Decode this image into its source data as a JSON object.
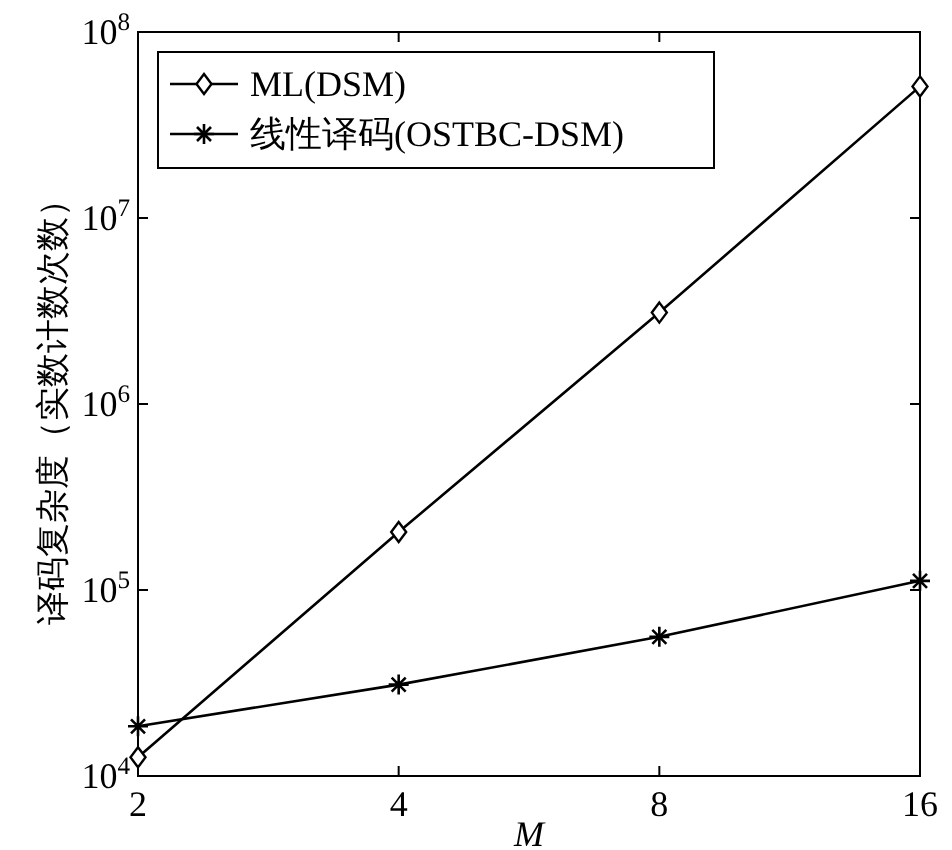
{
  "chart_data": {
    "type": "line",
    "xlabel": "M",
    "ylabel": "译码复杂度（实数计数次数）",
    "log": "xy",
    "legend": "top left",
    "x": [
      2,
      4,
      8,
      16
    ],
    "xlim": [
      2,
      16
    ],
    "xticks": [
      2,
      4,
      8,
      16
    ],
    "ylim": [
      10000,
      100000000
    ],
    "yticks": [
      {
        "value": 10000,
        "label": "10$^{4}$"
      },
      {
        "value": 100000,
        "label": "10$^{5}$"
      },
      {
        "value": 1000000,
        "label": "10$^{6}$"
      },
      {
        "value": 10000000,
        "label": "10$^{7}$"
      },
      {
        "value": 100000000,
        "label": "10$^{8}$"
      }
    ],
    "series": [
      {
        "name": "ML(DSM)",
        "color": "#000000",
        "marker": "diamond",
        "values": [
          12600,
          205000,
          3100000,
          51000000
        ]
      },
      {
        "name": "线性译码(OSTBC-DSM)",
        "color": "#000000",
        "marker": "cross",
        "values": [
          18500,
          31000,
          56000,
          112000
        ]
      }
    ]
  }
}
